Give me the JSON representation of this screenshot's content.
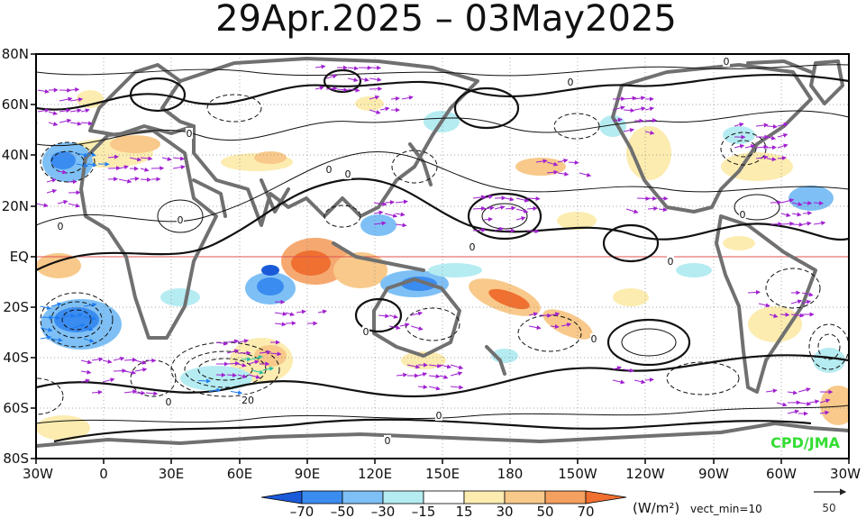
{
  "title": "29Apr.2025 – 03May2025",
  "map": {
    "lat_labels": [
      "80N",
      "60N",
      "40N",
      "20N",
      "EQ",
      "20S",
      "40S",
      "60S",
      "80S"
    ],
    "lon_labels": [
      "30W",
      "0",
      "30E",
      "60E",
      "90E",
      "120E",
      "150E",
      "180",
      "150W",
      "120W",
      "90W",
      "60W",
      "30W"
    ],
    "contour_label": "0",
    "contour_label_alt": "20",
    "credit": "CPD/JMA"
  },
  "colorbar": {
    "ticks": [
      "–70",
      "–50",
      "–30",
      "–15",
      "15",
      "30",
      "50",
      "70"
    ],
    "colors": [
      "#1a5ad8",
      "#3b8cf0",
      "#7ec0f5",
      "#b5ecf2",
      "#ffffff",
      "#fcecb0",
      "#f8c98a",
      "#f4a060",
      "#ef7030"
    ],
    "unit": "(W/m²)",
    "vect_min": "vect_min=10"
  },
  "reference_vector": {
    "value": "50"
  }
}
